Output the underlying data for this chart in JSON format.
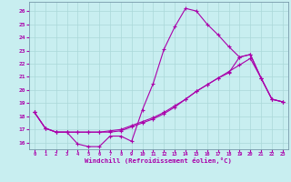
{
  "xlabel": "Windchill (Refroidissement éolien,°C)",
  "background_color": "#c8eef0",
  "grid_color": "#aad8d8",
  "line_color": "#aa00aa",
  "xlim": [
    -0.5,
    23.5
  ],
  "ylim": [
    15.5,
    26.7
  ],
  "yticks": [
    16,
    17,
    18,
    19,
    20,
    21,
    22,
    23,
    24,
    25,
    26
  ],
  "xticks": [
    0,
    1,
    2,
    3,
    4,
    5,
    6,
    7,
    8,
    9,
    10,
    11,
    12,
    13,
    14,
    15,
    16,
    17,
    18,
    19,
    20,
    21,
    22,
    23
  ],
  "line1_x": [
    0,
    1,
    2,
    3,
    4,
    5,
    6,
    7,
    8,
    9,
    10,
    11,
    12,
    13,
    14,
    15,
    16,
    17,
    18,
    19,
    20,
    21,
    22,
    23
  ],
  "line1_y": [
    18.3,
    17.1,
    16.8,
    16.8,
    15.9,
    15.7,
    15.7,
    16.5,
    16.5,
    16.1,
    18.5,
    20.5,
    23.1,
    24.8,
    26.2,
    26.0,
    25.0,
    24.2,
    23.3,
    22.5,
    22.7,
    20.9,
    19.3,
    19.1
  ],
  "line2_x": [
    0,
    1,
    2,
    3,
    4,
    5,
    6,
    7,
    8,
    9,
    10,
    11,
    12,
    13,
    14,
    15,
    16,
    17,
    18,
    19,
    20,
    21,
    22,
    23
  ],
  "line2_y": [
    18.3,
    17.1,
    16.8,
    16.8,
    16.8,
    16.8,
    16.8,
    16.9,
    17.0,
    17.3,
    17.6,
    17.9,
    18.3,
    18.8,
    19.3,
    19.9,
    20.4,
    20.9,
    21.4,
    21.9,
    22.4,
    20.9,
    19.3,
    19.1
  ],
  "line3_x": [
    0,
    1,
    2,
    3,
    4,
    5,
    6,
    7,
    8,
    9,
    10,
    11,
    12,
    13,
    14,
    15,
    16,
    17,
    18,
    19,
    20,
    21,
    22,
    23
  ],
  "line3_y": [
    18.3,
    17.1,
    16.8,
    16.8,
    16.8,
    16.8,
    16.8,
    16.8,
    16.9,
    17.2,
    17.5,
    17.8,
    18.2,
    18.7,
    19.3,
    19.9,
    20.4,
    20.9,
    21.3,
    22.5,
    22.7,
    20.9,
    19.3,
    19.1
  ]
}
